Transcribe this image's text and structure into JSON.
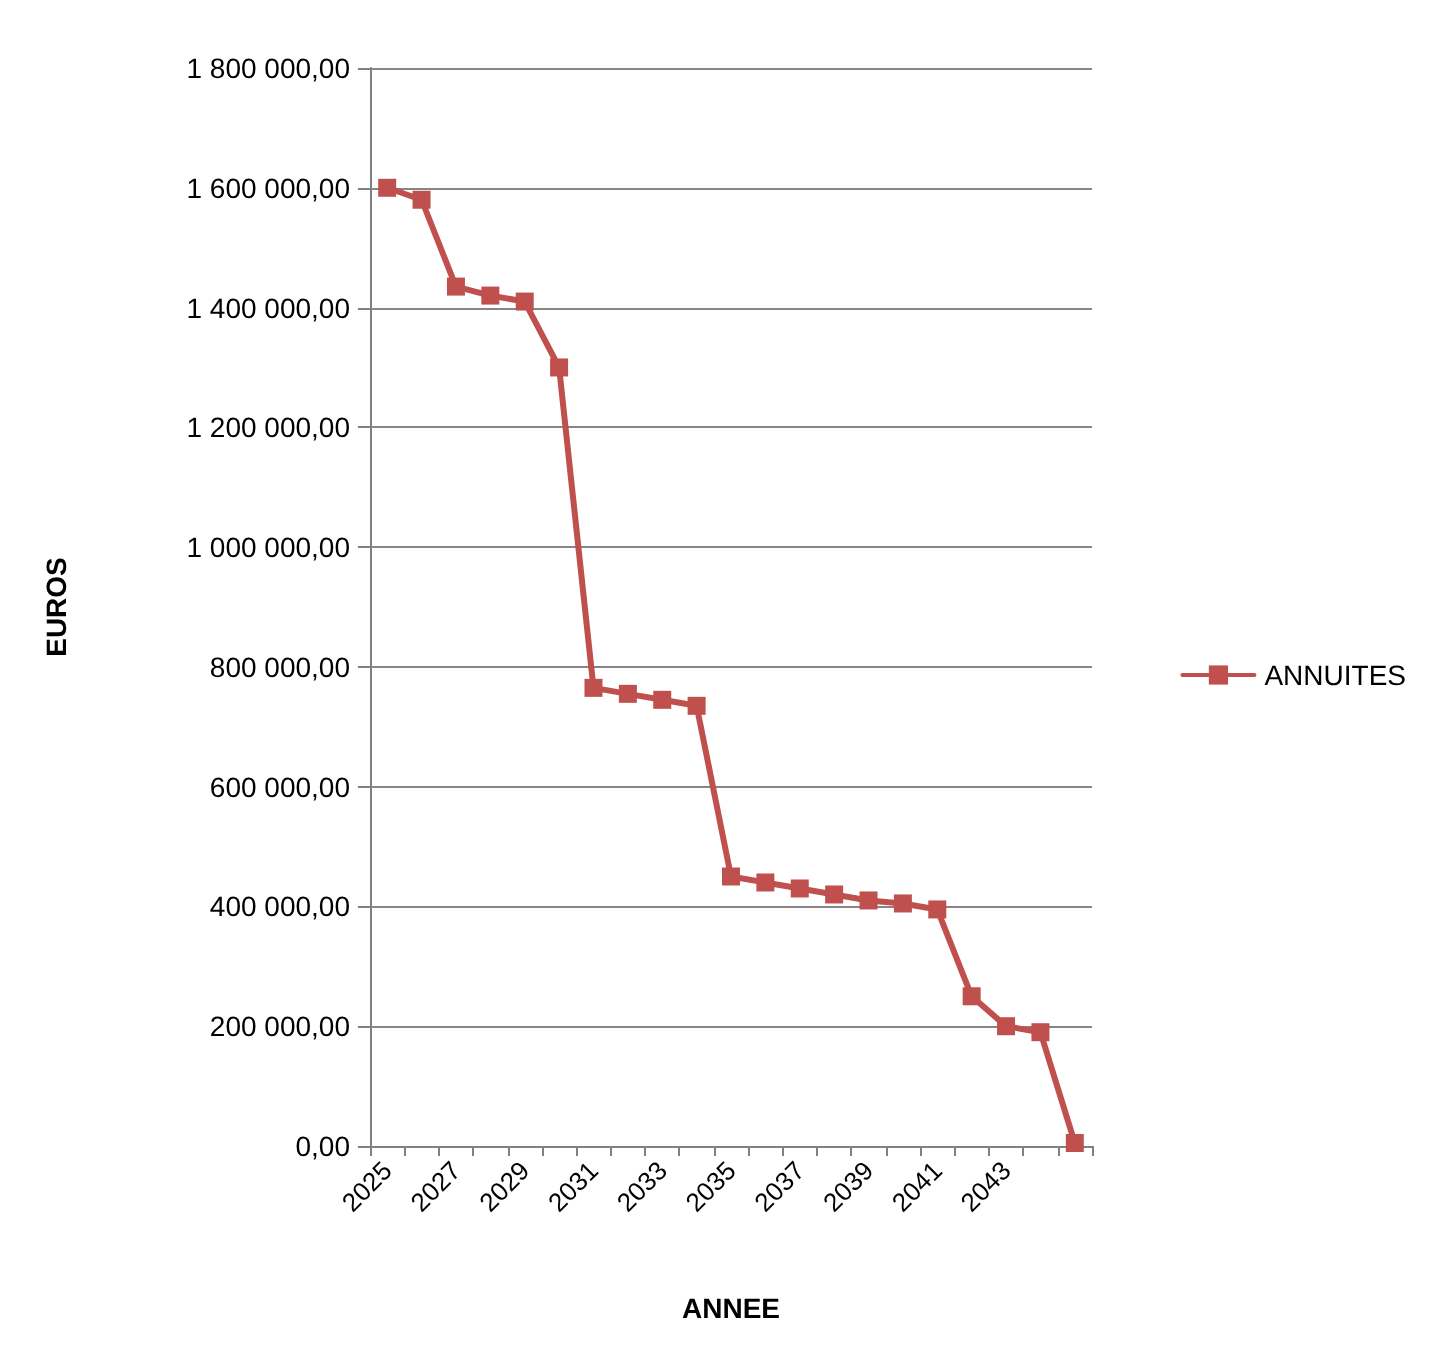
{
  "chart_data": {
    "type": "line",
    "xlabel": "ANNEE",
    "ylabel": "EUROS",
    "categories": [
      "2025",
      null,
      "2027",
      null,
      "2029",
      null,
      "2031",
      null,
      "2033",
      null,
      "2035",
      null,
      "2037",
      null,
      "2039",
      null,
      "2041",
      null,
      "2043",
      null,
      null
    ],
    "series": [
      {
        "name": "ANNUITES",
        "color": "#c0504d",
        "values": [
          1600000,
          1580000,
          1435000,
          1420000,
          1410000,
          1300000,
          765000,
          755000,
          745000,
          735000,
          450000,
          440000,
          430000,
          420000,
          410000,
          405000,
          395000,
          250000,
          200000,
          190000,
          5000
        ]
      }
    ],
    "ylim": [
      0,
      1800000
    ],
    "yticks": [
      {
        "value": 0,
        "label": "0,00"
      },
      {
        "value": 200000,
        "label": "200 000,00"
      },
      {
        "value": 400000,
        "label": "400 000,00"
      },
      {
        "value": 600000,
        "label": "600 000,00"
      },
      {
        "value": 800000,
        "label": "800 000,00"
      },
      {
        "value": 1000000,
        "label": "1 000 000,00"
      },
      {
        "value": 1200000,
        "label": "1 200 000,00"
      },
      {
        "value": 1400000,
        "label": "1 400 000,00"
      },
      {
        "value": 1600000,
        "label": "1 600 000,00"
      },
      {
        "value": 1800000,
        "label": "1 800 000,00"
      }
    ],
    "grid": "y",
    "legend": "right",
    "marker": "square",
    "line_style": "solid"
  }
}
